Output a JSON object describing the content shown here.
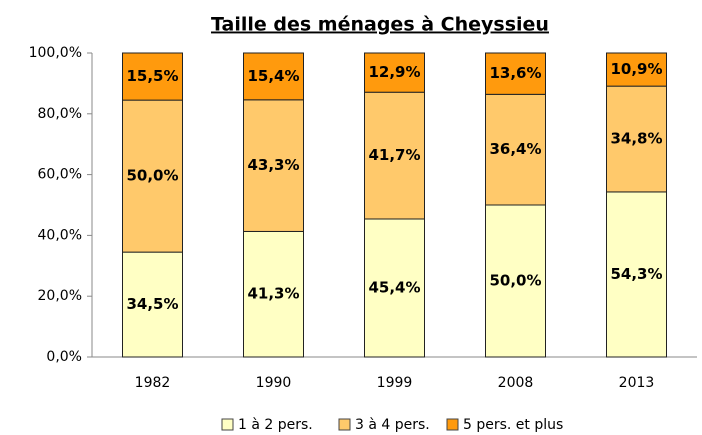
{
  "chart_data": {
    "type": "stacked_bar",
    "title": "Taille des ménages à Cheyssieu",
    "categories": [
      "1982",
      "1990",
      "1999",
      "2008",
      "2013"
    ],
    "series": [
      {
        "name": "1 à 2 pers.",
        "color": "#ffffc4",
        "values": [
          34.5,
          41.3,
          45.4,
          50.0,
          54.3
        ],
        "value_labels": [
          "34,5%",
          "41,3%",
          "45,4%",
          "50,0%",
          "54,3%"
        ]
      },
      {
        "name": "3 à 4 pers.",
        "color": "#ffc96b",
        "values": [
          50.0,
          43.3,
          41.7,
          36.4,
          34.8
        ],
        "value_labels": [
          "50,0%",
          "43,3%",
          "41,7%",
          "36,4%",
          "34,8%"
        ]
      },
      {
        "name": "5 pers. et plus",
        "color": "#ff9a0d",
        "values": [
          15.5,
          15.4,
          12.9,
          13.6,
          10.9
        ],
        "value_labels": [
          "15,5%",
          "15,4%",
          "12,9%",
          "13,6%",
          "10,9%"
        ]
      }
    ],
    "ylim": [
      0,
      100
    ],
    "yticks": [
      {
        "value": 0,
        "label": "0,0%"
      },
      {
        "value": 20,
        "label": "20,0%"
      },
      {
        "value": 40,
        "label": "40,0%"
      },
      {
        "value": 60,
        "label": "60,0%"
      },
      {
        "value": 80,
        "label": "80,0%"
      },
      {
        "value": 100,
        "label": "100,0%"
      }
    ],
    "grid": false,
    "legend": "bottom"
  }
}
